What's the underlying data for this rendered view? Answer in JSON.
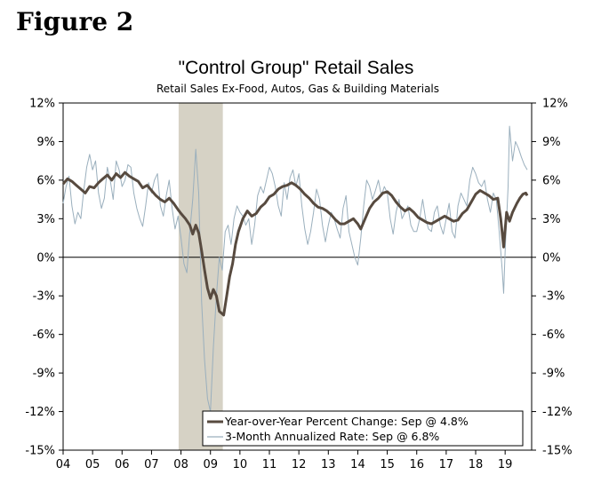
{
  "figure_label": "Figure 2",
  "chart_data": {
    "type": "line",
    "title": "\"Control Group\" Retail Sales",
    "subtitle": "Retail Sales Ex-Food, Autos, Gas & Building Materials",
    "xlabel": "",
    "ylabel": "",
    "xlim": [
      2004.0,
      2019.9
    ],
    "ylim": [
      -15,
      12
    ],
    "y_ticks": [
      12,
      9,
      6,
      3,
      0,
      -3,
      -6,
      -9,
      -12,
      -15
    ],
    "y_tick_labels": [
      "12%",
      "9%",
      "6%",
      "3%",
      "0%",
      "-3%",
      "-6%",
      "-9%",
      "-12%",
      "-15%"
    ],
    "x_ticks": [
      2004,
      2005,
      2006,
      2007,
      2008,
      2009,
      2010,
      2011,
      2012,
      2013,
      2014,
      2015,
      2016,
      2017,
      2018,
      2019
    ],
    "x_tick_labels": [
      "04",
      "05",
      "06",
      "07",
      "08",
      "09",
      "10",
      "11",
      "12",
      "13",
      "14",
      "15",
      "16",
      "17",
      "18",
      "19"
    ],
    "recession": [
      2007.92,
      2009.42
    ],
    "legend_position": "bottom-right",
    "series": [
      {
        "name": "Year-over-Year Percent Change: Sep @ 4.8%",
        "color": "#574a3f",
        "points": [
          [
            2004.0,
            5.7
          ],
          [
            2004.15,
            6.1
          ],
          [
            2004.3,
            5.9
          ],
          [
            2004.45,
            5.6
          ],
          [
            2004.6,
            5.3
          ],
          [
            2004.75,
            5.0
          ],
          [
            2004.9,
            5.5
          ],
          [
            2005.05,
            5.4
          ],
          [
            2005.2,
            5.8
          ],
          [
            2005.35,
            6.1
          ],
          [
            2005.5,
            6.4
          ],
          [
            2005.65,
            6.0
          ],
          [
            2005.8,
            6.5
          ],
          [
            2005.95,
            6.2
          ],
          [
            2006.1,
            6.6
          ],
          [
            2006.25,
            6.3
          ],
          [
            2006.4,
            6.1
          ],
          [
            2006.55,
            5.9
          ],
          [
            2006.7,
            5.4
          ],
          [
            2006.85,
            5.6
          ],
          [
            2007.0,
            5.2
          ],
          [
            2007.15,
            4.8
          ],
          [
            2007.3,
            4.5
          ],
          [
            2007.45,
            4.3
          ],
          [
            2007.6,
            4.6
          ],
          [
            2007.75,
            4.2
          ],
          [
            2007.9,
            3.7
          ],
          [
            2008.0,
            3.4
          ],
          [
            2008.15,
            3.0
          ],
          [
            2008.3,
            2.5
          ],
          [
            2008.4,
            1.8
          ],
          [
            2008.5,
            2.5
          ],
          [
            2008.6,
            1.9
          ],
          [
            2008.7,
            0.5
          ],
          [
            2008.8,
            -1.0
          ],
          [
            2008.9,
            -2.4
          ],
          [
            2009.0,
            -3.2
          ],
          [
            2009.1,
            -2.5
          ],
          [
            2009.2,
            -3.0
          ],
          [
            2009.3,
            -4.2
          ],
          [
            2009.45,
            -4.5
          ],
          [
            2009.55,
            -3.0
          ],
          [
            2009.65,
            -1.5
          ],
          [
            2009.75,
            -0.5
          ],
          [
            2009.85,
            1.0
          ],
          [
            2009.95,
            2.0
          ],
          [
            2010.1,
            3.0
          ],
          [
            2010.25,
            3.6
          ],
          [
            2010.4,
            3.2
          ],
          [
            2010.55,
            3.4
          ],
          [
            2010.7,
            3.9
          ],
          [
            2010.85,
            4.2
          ],
          [
            2011.0,
            4.7
          ],
          [
            2011.15,
            4.9
          ],
          [
            2011.3,
            5.3
          ],
          [
            2011.45,
            5.5
          ],
          [
            2011.6,
            5.6
          ],
          [
            2011.75,
            5.8
          ],
          [
            2011.9,
            5.6
          ],
          [
            2012.05,
            5.3
          ],
          [
            2012.2,
            4.9
          ],
          [
            2012.35,
            4.6
          ],
          [
            2012.5,
            4.2
          ],
          [
            2012.65,
            3.9
          ],
          [
            2012.8,
            3.8
          ],
          [
            2012.95,
            3.6
          ],
          [
            2013.1,
            3.3
          ],
          [
            2013.25,
            2.9
          ],
          [
            2013.4,
            2.6
          ],
          [
            2013.55,
            2.6
          ],
          [
            2013.7,
            2.8
          ],
          [
            2013.85,
            3.0
          ],
          [
            2014.0,
            2.6
          ],
          [
            2014.1,
            2.2
          ],
          [
            2014.25,
            3.0
          ],
          [
            2014.4,
            3.8
          ],
          [
            2014.55,
            4.3
          ],
          [
            2014.7,
            4.6
          ],
          [
            2014.85,
            5.0
          ],
          [
            2015.0,
            5.1
          ],
          [
            2015.15,
            4.8
          ],
          [
            2015.3,
            4.3
          ],
          [
            2015.45,
            3.9
          ],
          [
            2015.6,
            3.6
          ],
          [
            2015.75,
            3.8
          ],
          [
            2015.9,
            3.5
          ],
          [
            2016.05,
            3.1
          ],
          [
            2016.2,
            2.9
          ],
          [
            2016.35,
            2.7
          ],
          [
            2016.5,
            2.6
          ],
          [
            2016.65,
            2.8
          ],
          [
            2016.8,
            3.0
          ],
          [
            2016.95,
            3.2
          ],
          [
            2017.1,
            3.0
          ],
          [
            2017.25,
            2.8
          ],
          [
            2017.4,
            2.9
          ],
          [
            2017.55,
            3.4
          ],
          [
            2017.7,
            3.7
          ],
          [
            2017.85,
            4.3
          ],
          [
            2018.0,
            4.9
          ],
          [
            2018.15,
            5.2
          ],
          [
            2018.3,
            5.0
          ],
          [
            2018.45,
            4.8
          ],
          [
            2018.6,
            4.5
          ],
          [
            2018.75,
            4.6
          ],
          [
            2018.85,
            3.0
          ],
          [
            2018.95,
            0.8
          ],
          [
            2019.05,
            3.5
          ],
          [
            2019.15,
            2.8
          ],
          [
            2019.25,
            3.5
          ],
          [
            2019.4,
            4.2
          ],
          [
            2019.5,
            4.6
          ],
          [
            2019.6,
            4.9
          ],
          [
            2019.7,
            5.0
          ],
          [
            2019.75,
            4.8
          ]
        ]
      },
      {
        "name": "3-Month Annualized Rate: Sep @ 6.8%",
        "color": "#9aafbd",
        "points": [
          [
            2004.0,
            4.2
          ],
          [
            2004.1,
            5.5
          ],
          [
            2004.2,
            6.3
          ],
          [
            2004.3,
            4.0
          ],
          [
            2004.4,
            2.6
          ],
          [
            2004.5,
            3.5
          ],
          [
            2004.6,
            3.0
          ],
          [
            2004.7,
            5.2
          ],
          [
            2004.8,
            7.0
          ],
          [
            2004.9,
            8.0
          ],
          [
            2005.0,
            6.8
          ],
          [
            2005.1,
            7.5
          ],
          [
            2005.2,
            5.0
          ],
          [
            2005.3,
            3.8
          ],
          [
            2005.4,
            4.6
          ],
          [
            2005.5,
            7.0
          ],
          [
            2005.6,
            6.0
          ],
          [
            2005.7,
            4.5
          ],
          [
            2005.8,
            7.5
          ],
          [
            2005.9,
            6.8
          ],
          [
            2006.0,
            5.5
          ],
          [
            2006.1,
            6.0
          ],
          [
            2006.2,
            7.2
          ],
          [
            2006.3,
            7.0
          ],
          [
            2006.4,
            5.0
          ],
          [
            2006.5,
            3.8
          ],
          [
            2006.6,
            3.0
          ],
          [
            2006.7,
            2.4
          ],
          [
            2006.8,
            4.0
          ],
          [
            2006.9,
            5.8
          ],
          [
            2007.0,
            5.0
          ],
          [
            2007.1,
            6.0
          ],
          [
            2007.2,
            6.5
          ],
          [
            2007.3,
            4.0
          ],
          [
            2007.4,
            3.2
          ],
          [
            2007.5,
            4.8
          ],
          [
            2007.6,
            6.0
          ],
          [
            2007.7,
            3.8
          ],
          [
            2007.8,
            2.2
          ],
          [
            2007.9,
            3.2
          ],
          [
            2008.0,
            1.5
          ],
          [
            2008.1,
            -0.5
          ],
          [
            2008.2,
            -1.2
          ],
          [
            2008.3,
            2.0
          ],
          [
            2008.4,
            4.5
          ],
          [
            2008.5,
            8.4
          ],
          [
            2008.6,
            5.0
          ],
          [
            2008.7,
            -3.5
          ],
          [
            2008.8,
            -8.0
          ],
          [
            2008.9,
            -11.0
          ],
          [
            2009.0,
            -12.0
          ],
          [
            2009.1,
            -7.0
          ],
          [
            2009.2,
            -3.0
          ],
          [
            2009.3,
            0.0
          ],
          [
            2009.4,
            -1.0
          ],
          [
            2009.5,
            2.0
          ],
          [
            2009.6,
            2.5
          ],
          [
            2009.7,
            1.0
          ],
          [
            2009.8,
            3.0
          ],
          [
            2009.9,
            4.0
          ],
          [
            2010.0,
            3.5
          ],
          [
            2010.1,
            3.2
          ],
          [
            2010.2,
            2.5
          ],
          [
            2010.3,
            3.0
          ],
          [
            2010.4,
            1.0
          ],
          [
            2010.5,
            2.5
          ],
          [
            2010.6,
            4.8
          ],
          [
            2010.7,
            5.5
          ],
          [
            2010.8,
            5.0
          ],
          [
            2010.9,
            6.0
          ],
          [
            2011.0,
            7.0
          ],
          [
            2011.1,
            6.5
          ],
          [
            2011.2,
            5.5
          ],
          [
            2011.3,
            4.0
          ],
          [
            2011.4,
            3.2
          ],
          [
            2011.5,
            5.8
          ],
          [
            2011.6,
            4.5
          ],
          [
            2011.7,
            6.2
          ],
          [
            2011.8,
            6.8
          ],
          [
            2011.9,
            5.5
          ],
          [
            2012.0,
            6.5
          ],
          [
            2012.1,
            4.0
          ],
          [
            2012.2,
            2.2
          ],
          [
            2012.3,
            1.0
          ],
          [
            2012.4,
            2.0
          ],
          [
            2012.5,
            3.5
          ],
          [
            2012.6,
            5.3
          ],
          [
            2012.7,
            4.5
          ],
          [
            2012.8,
            2.5
          ],
          [
            2012.9,
            1.2
          ],
          [
            2013.0,
            2.5
          ],
          [
            2013.1,
            3.5
          ],
          [
            2013.2,
            3.0
          ],
          [
            2013.3,
            2.2
          ],
          [
            2013.4,
            1.5
          ],
          [
            2013.5,
            3.8
          ],
          [
            2013.6,
            4.8
          ],
          [
            2013.7,
            2.0
          ],
          [
            2013.8,
            1.0
          ],
          [
            2013.9,
            0.0
          ],
          [
            2014.0,
            -0.6
          ],
          [
            2014.1,
            1.5
          ],
          [
            2014.2,
            4.0
          ],
          [
            2014.3,
            6.0
          ],
          [
            2014.4,
            5.5
          ],
          [
            2014.5,
            4.5
          ],
          [
            2014.6,
            5.2
          ],
          [
            2014.7,
            6.0
          ],
          [
            2014.8,
            4.8
          ],
          [
            2014.9,
            5.5
          ],
          [
            2015.0,
            5.0
          ],
          [
            2015.1,
            3.0
          ],
          [
            2015.2,
            1.8
          ],
          [
            2015.3,
            3.5
          ],
          [
            2015.4,
            4.5
          ],
          [
            2015.5,
            3.0
          ],
          [
            2015.6,
            3.5
          ],
          [
            2015.7,
            4.0
          ],
          [
            2015.8,
            2.5
          ],
          [
            2015.9,
            2.0
          ],
          [
            2016.0,
            2.0
          ],
          [
            2016.1,
            3.0
          ],
          [
            2016.2,
            4.5
          ],
          [
            2016.3,
            3.0
          ],
          [
            2016.4,
            2.2
          ],
          [
            2016.5,
            2.0
          ],
          [
            2016.6,
            3.5
          ],
          [
            2016.7,
            4.0
          ],
          [
            2016.8,
            2.5
          ],
          [
            2016.9,
            1.8
          ],
          [
            2017.0,
            3.0
          ],
          [
            2017.1,
            4.2
          ],
          [
            2017.2,
            2.0
          ],
          [
            2017.3,
            1.5
          ],
          [
            2017.4,
            4.0
          ],
          [
            2017.5,
            5.0
          ],
          [
            2017.6,
            4.5
          ],
          [
            2017.7,
            4.0
          ],
          [
            2017.8,
            6.0
          ],
          [
            2017.9,
            7.0
          ],
          [
            2018.0,
            6.5
          ],
          [
            2018.1,
            5.8
          ],
          [
            2018.2,
            5.5
          ],
          [
            2018.3,
            6.0
          ],
          [
            2018.4,
            4.5
          ],
          [
            2018.5,
            3.5
          ],
          [
            2018.6,
            5.0
          ],
          [
            2018.7,
            4.5
          ],
          [
            2018.8,
            2.0
          ],
          [
            2018.9,
            -1.0
          ],
          [
            2018.95,
            -2.8
          ],
          [
            2019.0,
            0.5
          ],
          [
            2019.1,
            5.5
          ],
          [
            2019.15,
            10.2
          ],
          [
            2019.25,
            7.5
          ],
          [
            2019.35,
            9.0
          ],
          [
            2019.45,
            8.5
          ],
          [
            2019.55,
            7.8
          ],
          [
            2019.65,
            7.2
          ],
          [
            2019.75,
            6.8
          ]
        ]
      }
    ]
  }
}
